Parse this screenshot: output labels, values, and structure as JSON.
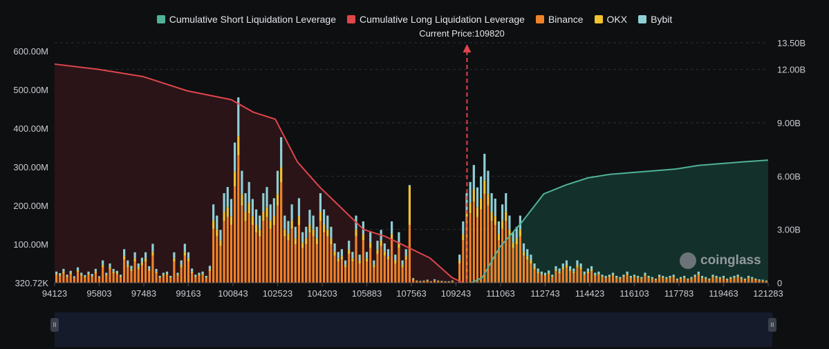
{
  "legend": {
    "short": "Cumulative Short Liquidation Leverage",
    "long": "Cumulative Long Liquidation Leverage",
    "binance": "Binance",
    "okx": "OKX",
    "bybit": "Bybit"
  },
  "current_price_label": "Current Price:109820",
  "brand": "coinglass",
  "colors": {
    "short": "#4fb39a",
    "long": "#e0464b",
    "binance": "#f0832a",
    "okx": "#f2c230",
    "bybit": "#8fd0d6",
    "short_fill": "#14302a",
    "long_fill": "#2a1418"
  },
  "chart_data": {
    "type": "bar",
    "title": "",
    "current_price": 109820,
    "x_ticks": [
      "94123",
      "95803",
      "97483",
      "99163",
      "100843",
      "102523",
      "104203",
      "105883",
      "107563",
      "109243",
      "111063",
      "112743",
      "114423",
      "116103",
      "117783",
      "119463",
      "121283"
    ],
    "x_range": [
      94123,
      121283
    ],
    "y_left": {
      "ticks": [
        "320.72K",
        "100.00M",
        "200.00M",
        "300.00M",
        "400.00M",
        "500.00M",
        "600.00M"
      ],
      "range": [
        0,
        600
      ]
    },
    "y_right": {
      "ticks": [
        "0",
        "3.00B",
        "6.00B",
        "9.00B",
        "12.00B",
        "13.50B"
      ],
      "range": [
        0,
        13.5
      ]
    },
    "series_bars": [
      {
        "name": "Binance",
        "values": [
          20,
          18,
          25,
          15,
          22,
          12,
          28,
          18,
          14,
          20,
          16,
          25,
          12,
          40,
          18,
          35,
          25,
          22,
          15,
          60,
          40,
          30,
          55,
          35,
          45,
          55,
          30,
          70,
          25,
          12,
          18,
          20,
          12,
          55,
          18,
          40,
          70,
          55,
          25,
          15,
          18,
          20,
          12,
          30,
          140,
          120,
          95,
          160,
          170,
          150,
          250,
          330,
          200,
          160,
          180,
          150,
          130,
          120,
          160,
          170,
          140,
          150,
          200,
          260,
          120,
          110,
          140,
          100,
          150,
          90,
          100,
          130,
          120,
          100,
          160,
          130,
          120,
          100,
          70,
          55,
          60,
          40,
          75,
          55,
          120,
          50,
          110,
          55,
          90,
          40,
          75,
          95,
          70,
          60,
          110,
          50,
          90,
          40,
          60,
          150,
          8,
          4,
          3,
          4,
          5,
          2,
          6,
          4,
          3,
          2,
          2,
          4,
          1,
          50,
          110,
          160,
          180,
          210,
          170,
          190,
          230,
          200,
          160,
          150,
          110,
          140,
          160,
          120,
          90,
          100,
          120,
          70,
          60,
          50,
          35,
          25,
          20,
          18,
          22,
          15,
          30,
          25,
          35,
          40,
          30,
          25,
          40,
          35,
          20,
          25,
          30,
          18,
          20,
          15,
          12,
          15,
          18,
          12,
          10,
          15,
          20,
          12,
          15,
          12,
          10,
          18,
          12,
          10,
          8,
          15,
          12,
          10,
          12,
          15,
          8,
          10,
          12,
          8,
          10,
          15,
          20,
          12,
          10,
          8,
          15,
          12,
          10,
          12,
          8,
          10,
          12,
          15,
          10,
          8,
          12,
          10,
          8,
          6,
          5,
          4
        ]
      },
      {
        "name": "OKX",
        "values": [
          3,
          2,
          4,
          2,
          3,
          2,
          4,
          3,
          2,
          3,
          2,
          4,
          2,
          6,
          3,
          5,
          4,
          3,
          2,
          9,
          6,
          5,
          8,
          5,
          7,
          8,
          4,
          10,
          4,
          2,
          3,
          3,
          2,
          8,
          3,
          6,
          10,
          8,
          4,
          2,
          3,
          3,
          2,
          5,
          21,
          18,
          14,
          24,
          26,
          22,
          38,
          50,
          30,
          24,
          27,
          22,
          20,
          18,
          24,
          26,
          21,
          23,
          30,
          39,
          18,
          17,
          21,
          15,
          23,
          14,
          15,
          20,
          18,
          15,
          24,
          20,
          18,
          15,
          11,
          8,
          9,
          6,
          11,
          8,
          18,
          8,
          16,
          8,
          14,
          6,
          11,
          14,
          11,
          9,
          16,
          8,
          14,
          6,
          9,
          100,
          2,
          1,
          1,
          1,
          1,
          1,
          1,
          1,
          1,
          1,
          1,
          1,
          0,
          8,
          16,
          24,
          27,
          32,
          26,
          28,
          35,
          30,
          24,
          23,
          16,
          21,
          24,
          18,
          14,
          15,
          18,
          11,
          9,
          8,
          5,
          4,
          3,
          3,
          3,
          2,
          4,
          4,
          5,
          6,
          4,
          4,
          6,
          5,
          3,
          4,
          4,
          3,
          3,
          2,
          2,
          2,
          3,
          2,
          2,
          2,
          3,
          2,
          2,
          2,
          2,
          3,
          2,
          2,
          1,
          2,
          2,
          2,
          2,
          2,
          1,
          2,
          2,
          1,
          2,
          2,
          3,
          2,
          2,
          1,
          2,
          2,
          2,
          2,
          1,
          2,
          2,
          2,
          2,
          1,
          2,
          2,
          1,
          1,
          1,
          1
        ]
      },
      {
        "name": "Bybit",
        "values": [
          6,
          5,
          7,
          4,
          6,
          3,
          8,
          5,
          4,
          6,
          5,
          7,
          3,
          12,
          5,
          10,
          7,
          6,
          4,
          18,
          12,
          9,
          16,
          10,
          13,
          16,
          9,
          21,
          7,
          4,
          5,
          6,
          4,
          16,
          5,
          12,
          21,
          16,
          8,
          4,
          5,
          6,
          4,
          9,
          42,
          36,
          28,
          48,
          52,
          45,
          75,
          100,
          60,
          48,
          54,
          45,
          40,
          36,
          48,
          52,
          42,
          46,
          60,
          78,
          36,
          33,
          42,
          30,
          46,
          27,
          30,
          39,
          36,
          30,
          48,
          40,
          36,
          30,
          21,
          17,
          18,
          12,
          23,
          17,
          36,
          15,
          33,
          17,
          27,
          12,
          23,
          28,
          21,
          18,
          33,
          15,
          27,
          12,
          18,
          3,
          2,
          1,
          1,
          1,
          2,
          1,
          2,
          1,
          1,
          1,
          1,
          1,
          0,
          15,
          33,
          48,
          54,
          63,
          51,
          57,
          69,
          60,
          48,
          45,
          33,
          42,
          48,
          36,
          27,
          30,
          36,
          21,
          18,
          15,
          10,
          8,
          6,
          5,
          7,
          4,
          9,
          8,
          10,
          12,
          9,
          8,
          12,
          10,
          6,
          8,
          9,
          5,
          6,
          4,
          4,
          4,
          5,
          4,
          3,
          4,
          6,
          4,
          4,
          4,
          3,
          5,
          4,
          3,
          2,
          4,
          4,
          3,
          4,
          4,
          2,
          3,
          4,
          2,
          3,
          4,
          6,
          4,
          3,
          2,
          4,
          4,
          3,
          4,
          2,
          3,
          4,
          4,
          3,
          2,
          4,
          3,
          2,
          2,
          2,
          1
        ]
      }
    ],
    "cumulative_long": {
      "name": "Cumulative Long Liquidation Leverage",
      "x": [
        94123,
        95803,
        97483,
        99163,
        100843,
        101683,
        102523,
        103363,
        104203,
        105043,
        105883,
        106723,
        107563,
        108403,
        109243,
        109660
      ],
      "y": [
        12.3,
        12.0,
        11.6,
        10.8,
        10.3,
        9.6,
        9.2,
        6.8,
        5.4,
        4.2,
        3.0,
        2.6,
        2.0,
        1.4,
        0.3,
        0.0
      ]
    },
    "cumulative_short": {
      "name": "Cumulative Short Liquidation Leverage",
      "x": [
        109980,
        110403,
        111063,
        111903,
        112743,
        113583,
        114423,
        115263,
        116103,
        116943,
        117783,
        118623,
        119463,
        120303,
        121283
      ],
      "y": [
        0.0,
        0.3,
        2.0,
        3.4,
        5.0,
        5.5,
        5.9,
        6.1,
        6.2,
        6.3,
        6.4,
        6.6,
        6.7,
        6.8,
        6.9
      ]
    }
  }
}
